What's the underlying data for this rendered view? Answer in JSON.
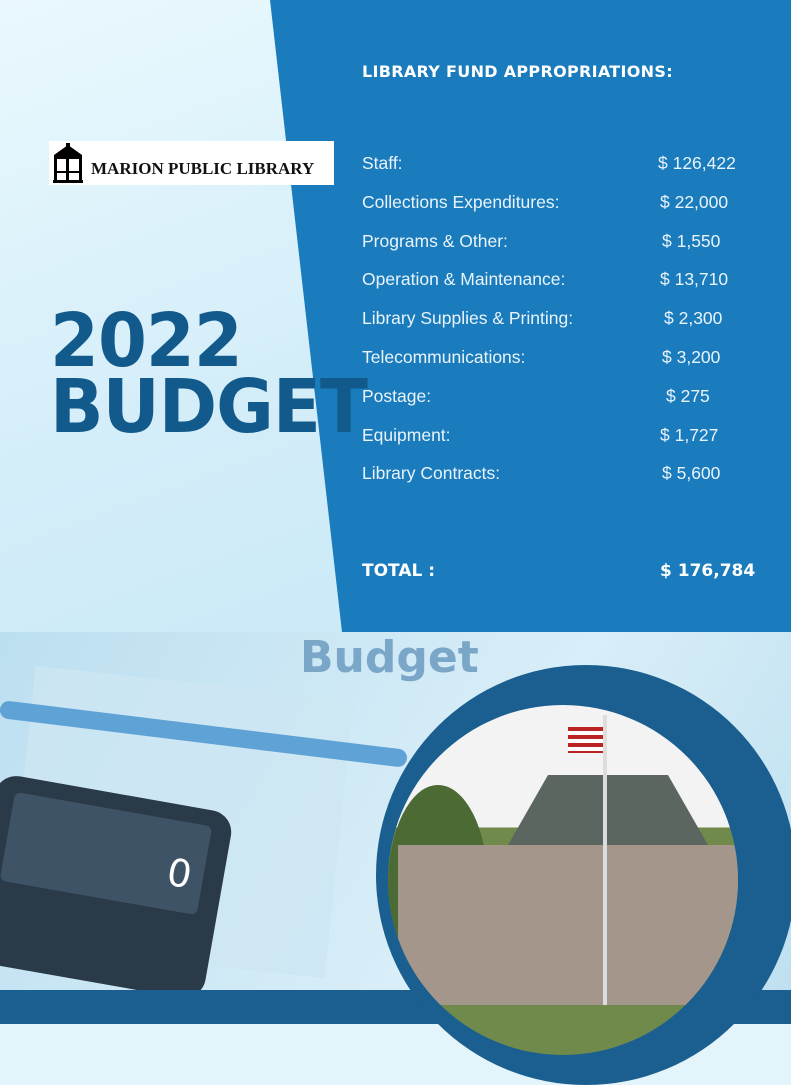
{
  "logo": {
    "text": "MARION PUBLIC LIBRARY"
  },
  "heading": {
    "line1": "2022",
    "line2": "BUDGET"
  },
  "appropriations": {
    "title": "LIBRARY FUND APPROPRIATIONS:",
    "items": [
      {
        "label": "Staff:",
        "amount": "$ 126,422"
      },
      {
        "label": "Collections Expenditures:",
        "amount": "$ 22,000"
      },
      {
        "label": "Programs & Other:",
        "amount": "$ 1,550"
      },
      {
        "label": "Operation & Maintenance:",
        "amount": "$ 13,710"
      },
      {
        "label": "Library Supplies & Printing:",
        "amount": "$ 2,300"
      },
      {
        "label": "Telecommunications:",
        "amount": "$ 3,200"
      },
      {
        "label": "Postage:",
        "amount": "$ 275"
      },
      {
        "label": "Equipment:",
        "amount": "$ 1,727"
      },
      {
        "label": "Library Contracts:",
        "amount": "$ 5,600"
      }
    ],
    "total_label": "TOTAL :",
    "total_amount": "$ 176,784"
  },
  "photo": {
    "budget_word": "Budget",
    "calculator_display": "0"
  },
  "colors": {
    "panel": "#1a7bbd",
    "heading": "#135a8c",
    "ring": "#1a5f8f"
  }
}
